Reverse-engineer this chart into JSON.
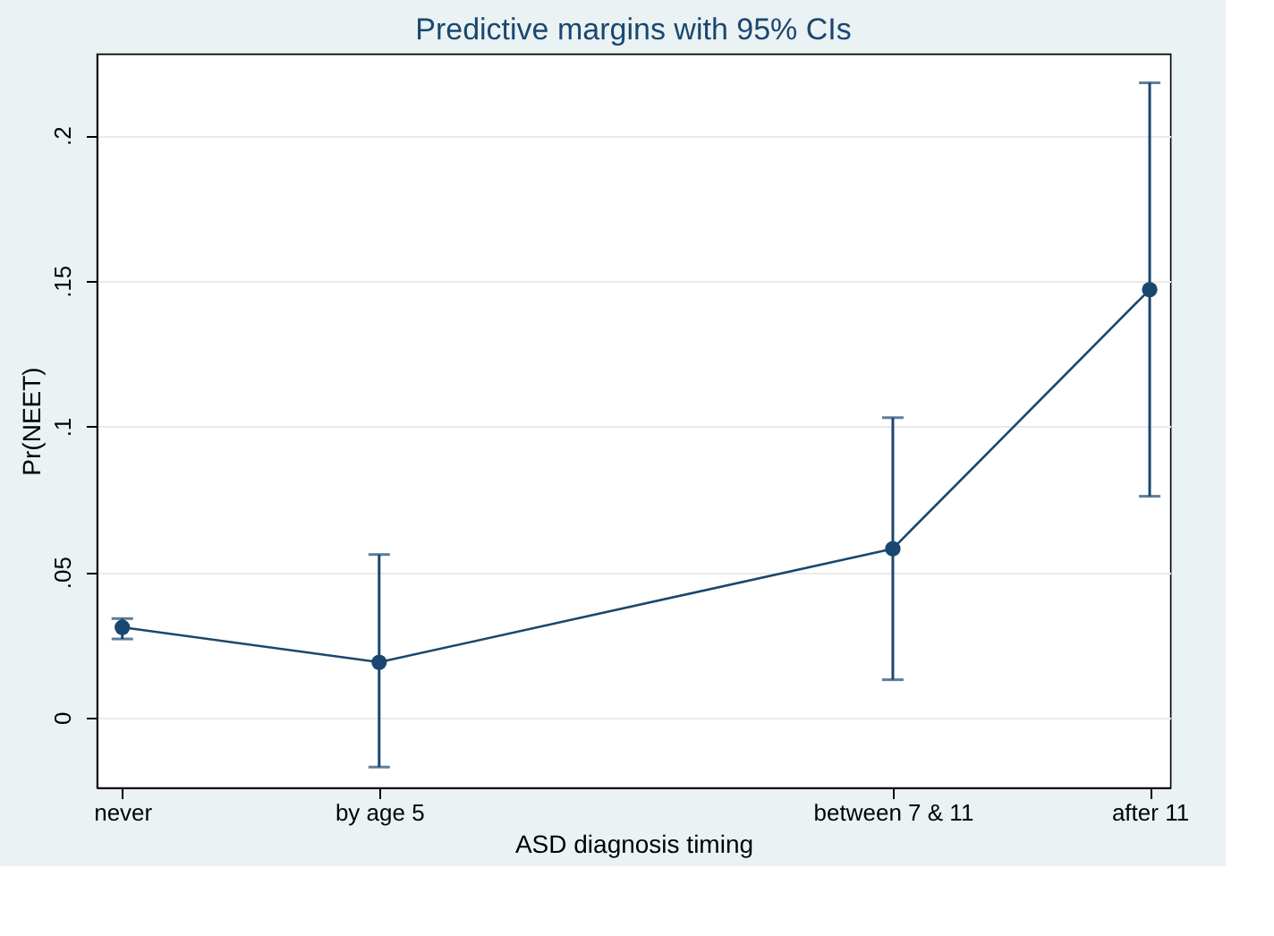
{
  "chart_data": {
    "type": "line",
    "title": "Predictive margins with 95% CIs",
    "xlabel": "ASD diagnosis timing",
    "ylabel": "Pr(NEET)",
    "categories": [
      "never",
      "by age 5",
      null,
      "between 7 & 11",
      "after 11"
    ],
    "series": [
      {
        "color": "#1a476f",
        "values": [
          0.031,
          0.019,
          null,
          0.058,
          0.147
        ],
        "errors": [
          [
            0.027,
            0.034
          ],
          [
            -0.017,
            0.056
          ],
          null,
          [
            0.013,
            0.103
          ],
          [
            0.076,
            0.218
          ]
        ]
      }
    ],
    "ylim": [
      -0.024,
      0.228
    ],
    "yticks": [
      {
        "value": 0,
        "label": "0"
      },
      {
        "value": 0.05,
        "label": ".05"
      },
      {
        "value": 0.1,
        "label": ".1"
      },
      {
        "value": 0.15,
        "label": ".15"
      },
      {
        "value": 0.2,
        "label": ".2"
      }
    ],
    "grid": "y",
    "marker": "circle",
    "line_style": "solid"
  }
}
